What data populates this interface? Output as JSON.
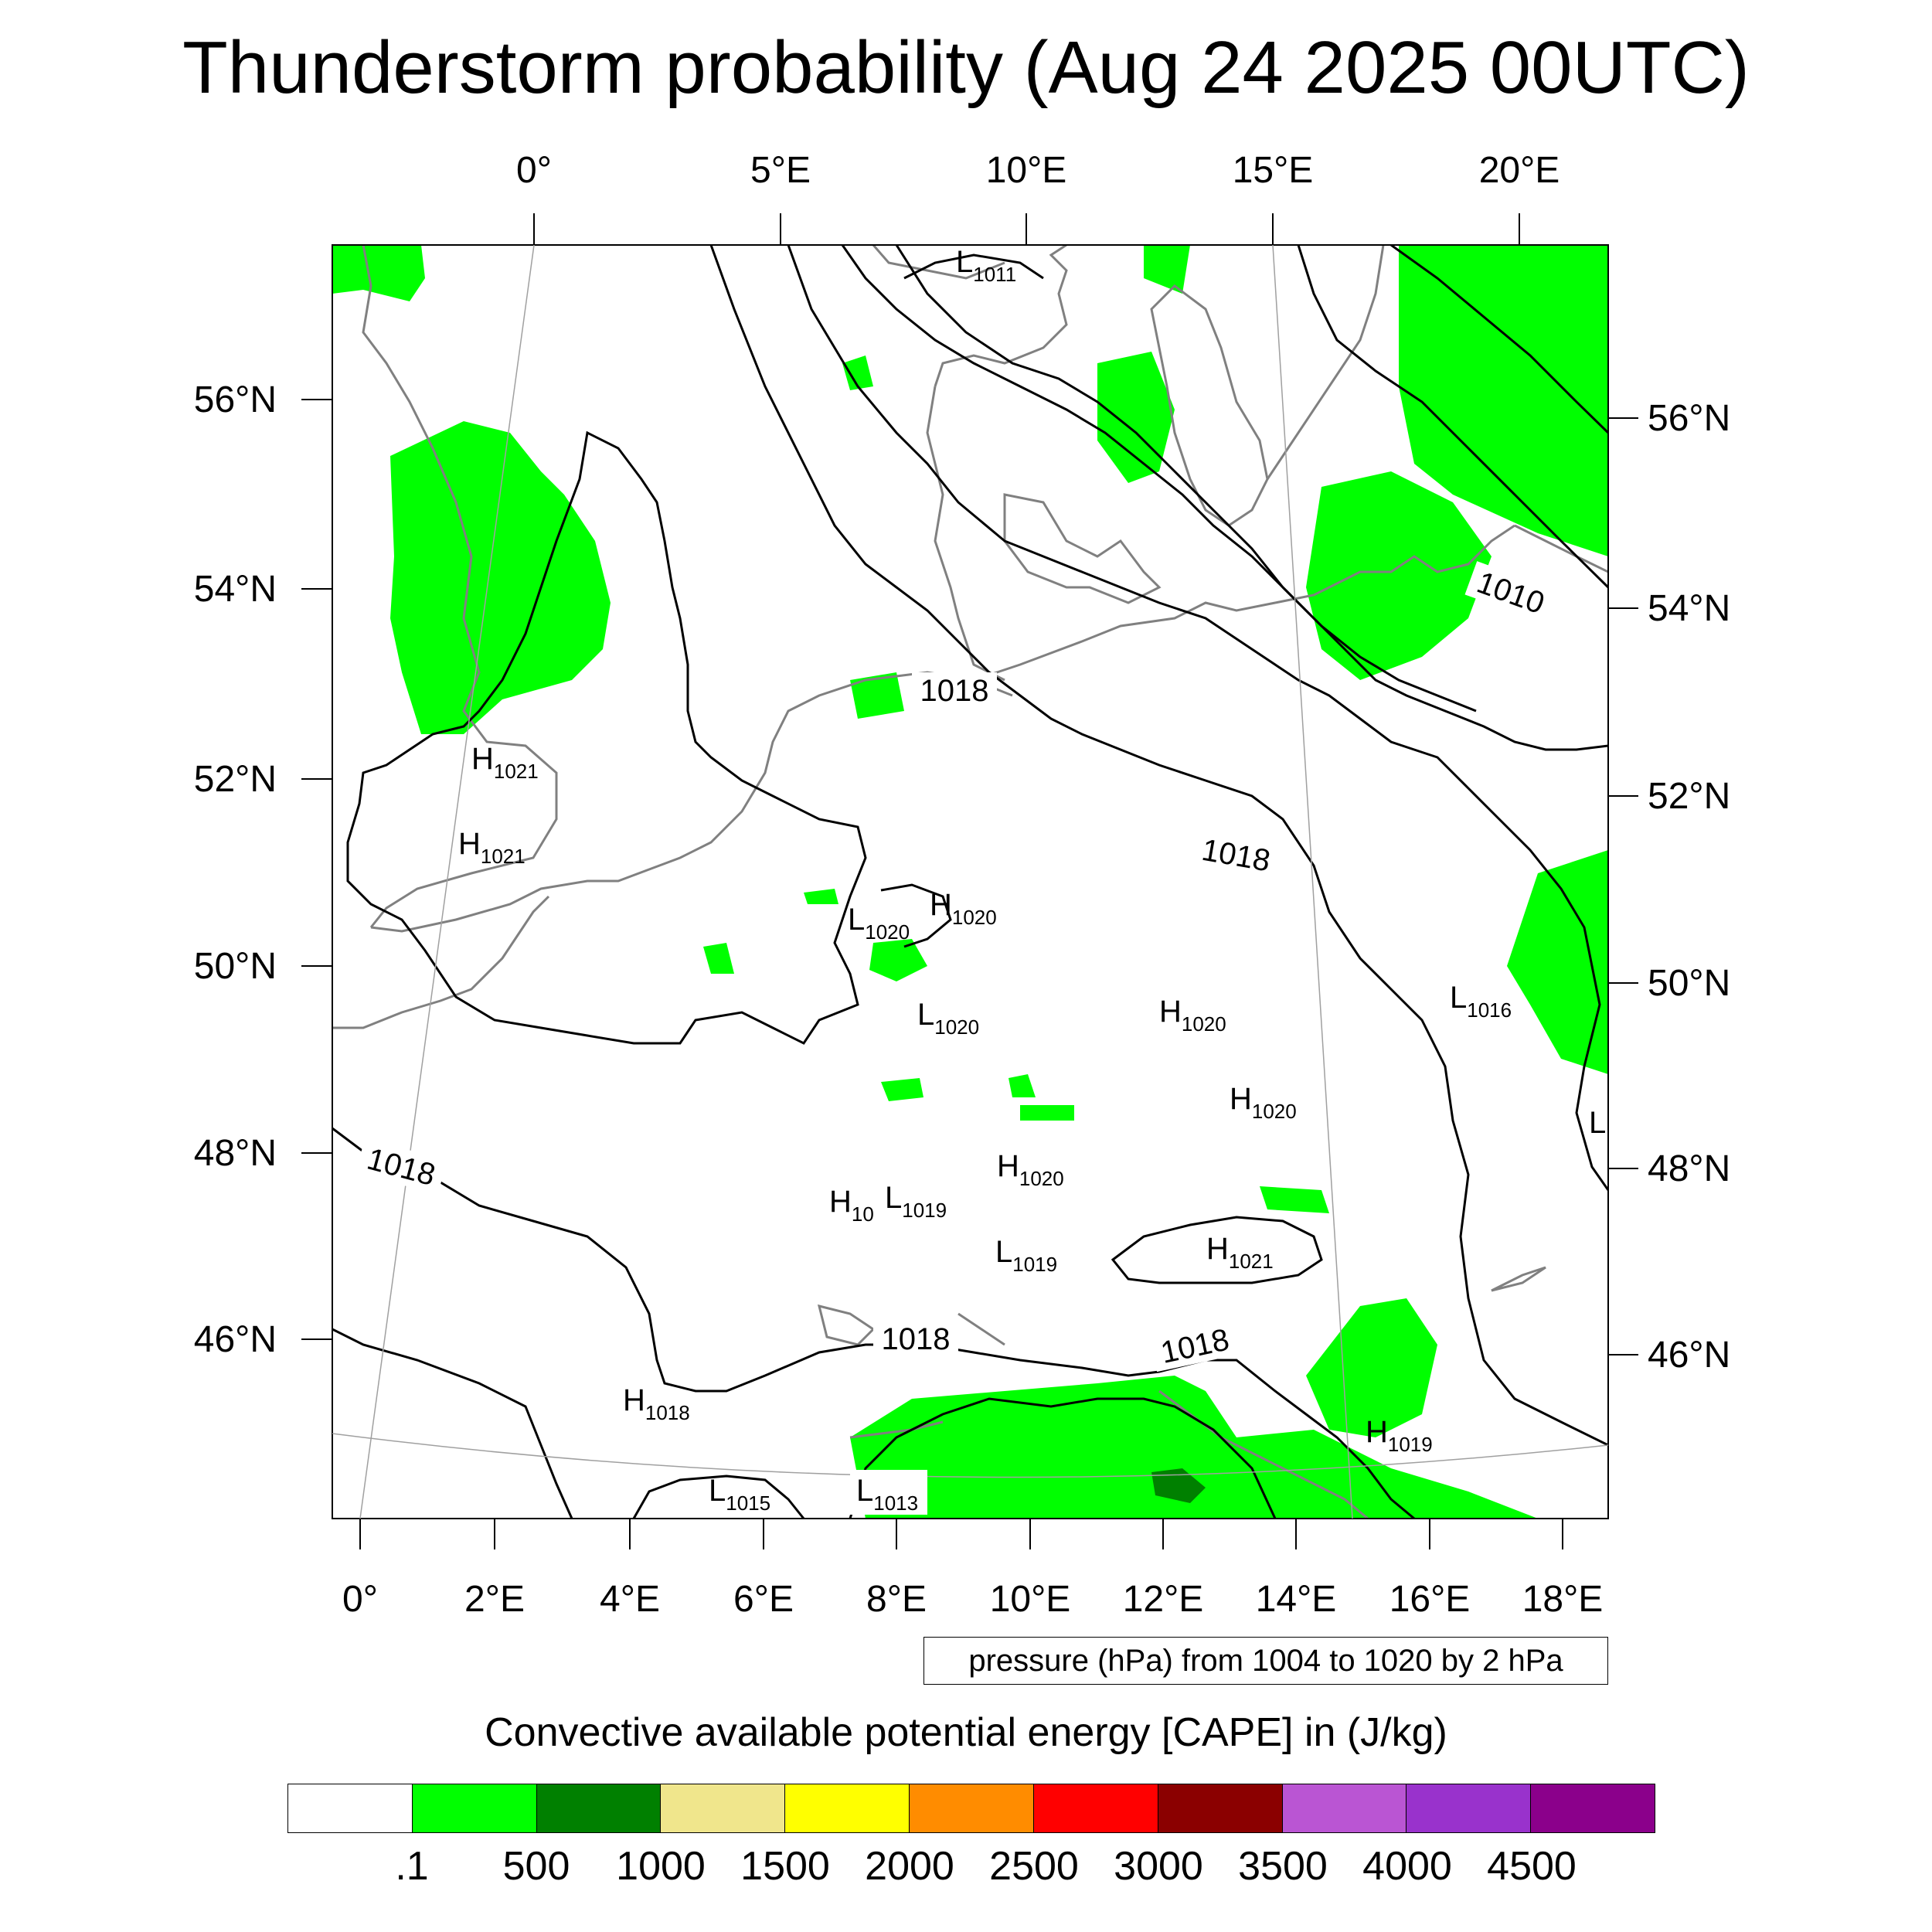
{
  "title": "Thunderstorm probability (Aug 24 2025 00UTC)",
  "axes": {
    "top_lon_labels": [
      "0°",
      "5°E",
      "10°E",
      "15°E",
      "20°E"
    ],
    "bottom_lon_labels": [
      "0°",
      "2°E",
      "4°E",
      "6°E",
      "8°E",
      "10°E",
      "12°E",
      "14°E",
      "16°E",
      "18°E"
    ],
    "left_lat_labels": [
      "56°N",
      "54°N",
      "52°N",
      "50°N",
      "48°N",
      "46°N"
    ],
    "right_lat_labels": [
      "56°N",
      "54°N",
      "52°N",
      "50°N",
      "48°N",
      "46°N"
    ]
  },
  "isobar_labels": [
    "1018",
    "1018",
    "1018",
    "1018",
    "1018",
    "1010"
  ],
  "pressure_centers": [
    {
      "type": "L",
      "value": "1011"
    },
    {
      "type": "H",
      "value": "1021"
    },
    {
      "type": "H",
      "value": "1021"
    },
    {
      "type": "L",
      "value": "1020"
    },
    {
      "type": "H",
      "value": "1020"
    },
    {
      "type": "L",
      "value": "1020"
    },
    {
      "type": "H",
      "value": "1020"
    },
    {
      "type": "L",
      "value": "1016"
    },
    {
      "type": "H",
      "value": "1020"
    },
    {
      "type": "H",
      "value": "1020"
    },
    {
      "type": "H",
      "value": "10"
    },
    {
      "type": "L",
      "value": "1019"
    },
    {
      "type": "L",
      "value": "1019"
    },
    {
      "type": "H",
      "value": "1021"
    },
    {
      "type": "H",
      "value": "1018"
    },
    {
      "type": "H",
      "value": "1019"
    },
    {
      "type": "L",
      "value": "1015"
    },
    {
      "type": "L",
      "value": "1013"
    },
    {
      "type": "L",
      "value": ""
    }
  ],
  "contour_info": "pressure (hPa) from 1004 to 1020 by 2 hPa",
  "legend": {
    "title": "Convective available potential energy [CAPE] in (J/kg)",
    "colors": [
      "#ffffff",
      "#00ff00",
      "#008000",
      "#f0e68c",
      "#ffff00",
      "#ff8c00",
      "#ff0000",
      "#8b0000",
      "#ba55d3",
      "#9932cc",
      "#8b008b"
    ],
    "labels": [
      ".1",
      "500",
      "1000",
      "1500",
      "2000",
      "2500",
      "3000",
      "3500",
      "4000",
      "4500"
    ]
  },
  "colors": {
    "cape_low": "#00ff00",
    "cape_mid": "#008000",
    "coastline": "#808080",
    "isobar": "#000000"
  }
}
